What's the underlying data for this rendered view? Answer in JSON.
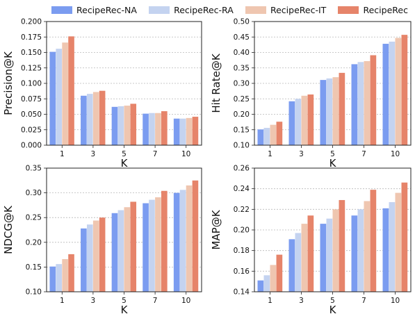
{
  "legend": {
    "series": [
      {
        "name": "RecipeRec-NA",
        "color": "#7b9cf0"
      },
      {
        "name": "RecipeRec-RA",
        "color": "#c4d3f0"
      },
      {
        "name": "RecipeRec-IT",
        "color": "#efc6b0"
      },
      {
        "name": "RecipeRec",
        "color": "#e6846a"
      }
    ]
  },
  "chart_data": [
    {
      "type": "bar",
      "xlabel": "K",
      "ylabel": "Precision@K",
      "categories": [
        "1",
        "3",
        "5",
        "7",
        "10"
      ],
      "ylim": [
        0.0,
        0.2
      ],
      "yticks": [
        "0.000",
        "0.025",
        "0.050",
        "0.075",
        "0.100",
        "0.125",
        "0.150",
        "0.175",
        "0.200"
      ],
      "grid": "horizontal dotted",
      "series": [
        {
          "name": "RecipeRec-NA",
          "values": [
            0.151,
            0.08,
            0.062,
            0.051,
            0.043
          ]
        },
        {
          "name": "RecipeRec-RA",
          "values": [
            0.156,
            0.083,
            0.063,
            0.052,
            0.043
          ]
        },
        {
          "name": "RecipeRec-IT",
          "values": [
            0.166,
            0.086,
            0.064,
            0.052,
            0.044
          ]
        },
        {
          "name": "RecipeRec",
          "values": [
            0.176,
            0.088,
            0.067,
            0.055,
            0.046
          ]
        }
      ]
    },
    {
      "type": "bar",
      "xlabel": "K",
      "ylabel": "Hit Rate@K",
      "categories": [
        "1",
        "3",
        "5",
        "7",
        "10"
      ],
      "ylim": [
        0.1,
        0.5
      ],
      "yticks": [
        "0.10",
        "0.15",
        "0.20",
        "0.25",
        "0.30",
        "0.35",
        "0.40",
        "0.45",
        "0.50"
      ],
      "grid": "horizontal dotted",
      "series": [
        {
          "name": "RecipeRec-NA",
          "values": [
            0.151,
            0.242,
            0.311,
            0.362,
            0.428
          ]
        },
        {
          "name": "RecipeRec-RA",
          "values": [
            0.156,
            0.25,
            0.316,
            0.369,
            0.435
          ]
        },
        {
          "name": "RecipeRec-IT",
          "values": [
            0.166,
            0.26,
            0.32,
            0.372,
            0.447
          ]
        },
        {
          "name": "RecipeRec",
          "values": [
            0.176,
            0.264,
            0.334,
            0.391,
            0.457
          ]
        }
      ]
    },
    {
      "type": "bar",
      "xlabel": "K",
      "ylabel": "NDCG@K",
      "categories": [
        "1",
        "3",
        "5",
        "7",
        "10"
      ],
      "ylim": [
        0.1,
        0.35
      ],
      "yticks": [
        "0.10",
        "0.15",
        "0.20",
        "0.25",
        "0.30",
        "0.35"
      ],
      "grid": "horizontal dotted",
      "series": [
        {
          "name": "RecipeRec-NA",
          "values": [
            0.151,
            0.228,
            0.259,
            0.279,
            0.3
          ]
        },
        {
          "name": "RecipeRec-RA",
          "values": [
            0.156,
            0.236,
            0.265,
            0.286,
            0.306
          ]
        },
        {
          "name": "RecipeRec-IT",
          "values": [
            0.166,
            0.244,
            0.271,
            0.291,
            0.315
          ]
        },
        {
          "name": "RecipeRec",
          "values": [
            0.176,
            0.25,
            0.282,
            0.304,
            0.325
          ]
        }
      ]
    },
    {
      "type": "bar",
      "xlabel": "K",
      "ylabel": "MAP@K",
      "categories": [
        "1",
        "3",
        "5",
        "7",
        "10"
      ],
      "ylim": [
        0.14,
        0.26
      ],
      "yticks": [
        "0.14",
        "0.16",
        "0.18",
        "0.20",
        "0.22",
        "0.24",
        "0.26"
      ],
      "grid": "horizontal dotted",
      "series": [
        {
          "name": "RecipeRec-NA",
          "values": [
            0.151,
            0.191,
            0.206,
            0.214,
            0.221
          ]
        },
        {
          "name": "RecipeRec-RA",
          "values": [
            0.156,
            0.197,
            0.211,
            0.22,
            0.227
          ]
        },
        {
          "name": "RecipeRec-IT",
          "values": [
            0.166,
            0.206,
            0.22,
            0.228,
            0.236
          ]
        },
        {
          "name": "RecipeRec",
          "values": [
            0.176,
            0.214,
            0.229,
            0.239,
            0.246
          ]
        }
      ]
    }
  ]
}
